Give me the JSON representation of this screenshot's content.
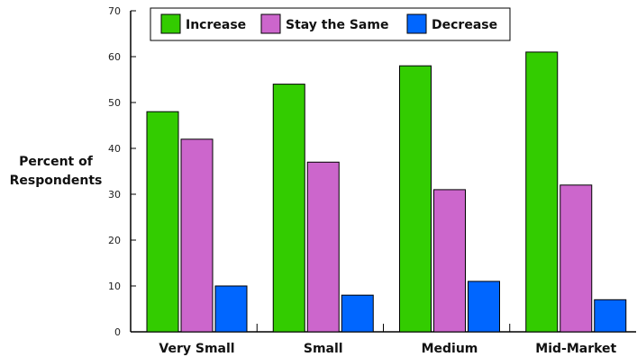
{
  "chart_data": {
    "type": "bar",
    "categories": [
      "Very Small",
      "Small",
      "Medium",
      "Mid-Market"
    ],
    "series": [
      {
        "name": "Increase",
        "values": [
          48,
          54,
          58,
          61
        ],
        "color": "#33cc00"
      },
      {
        "name": "Stay the Same",
        "values": [
          42,
          37,
          31,
          32
        ],
        "color": "#cc66cc"
      },
      {
        "name": "Decrease",
        "values": [
          10,
          8,
          11,
          7
        ],
        "color": "#0066ff"
      }
    ],
    "ylabel": [
      "Percent of",
      "Respondents"
    ],
    "ylim": [
      0,
      70
    ],
    "yticks": [
      0,
      10,
      20,
      30,
      40,
      50,
      60,
      70
    ],
    "grid": false,
    "legend_position": "top"
  }
}
